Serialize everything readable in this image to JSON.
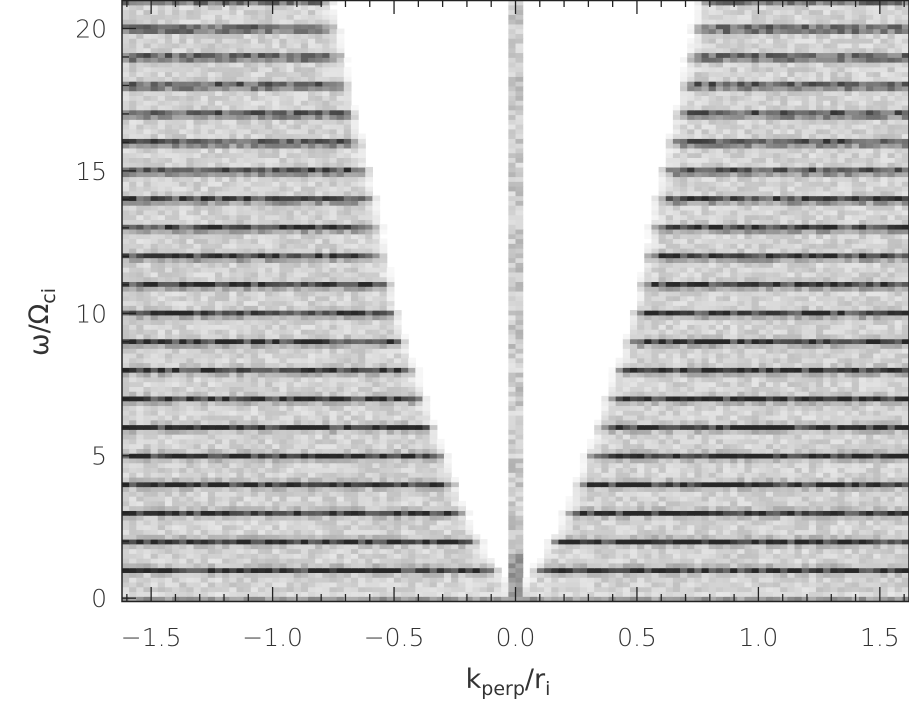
{
  "chart_data": {
    "type": "heatmap",
    "colormap": "grayscale-inverted",
    "title": "",
    "xlabel": {
      "main": "k",
      "sub": "perp",
      "mid": "/r",
      "sub2": "i"
    },
    "ylabel": {
      "main": "ω/Ω",
      "sub": "ci"
    },
    "xlim": [
      -1.62,
      1.62
    ],
    "ylim": [
      -0.1,
      21.0
    ],
    "x_ticks": [
      {
        "value": -1.5,
        "label": "−1.5"
      },
      {
        "value": -1.0,
        "label": "−1.0"
      },
      {
        "value": -0.5,
        "label": "−0.5"
      },
      {
        "value": 0.0,
        "label": "0.0"
      },
      {
        "value": 0.5,
        "label": "0.5"
      },
      {
        "value": 1.0,
        "label": "1.0"
      },
      {
        "value": 1.5,
        "label": "1.5"
      }
    ],
    "y_ticks": [
      {
        "value": 0,
        "label": "0"
      },
      {
        "value": 5,
        "label": "5"
      },
      {
        "value": 10,
        "label": "10"
      },
      {
        "value": 15,
        "label": "15"
      },
      {
        "value": 20,
        "label": "20"
      }
    ],
    "x_minor_step": 0.1,
    "y_minor_step": 1,
    "features": {
      "harmonic_bands_at_integer_omega": [
        1,
        2,
        3,
        4,
        5,
        6,
        7,
        8,
        9,
        10,
        11,
        12,
        13,
        14,
        15,
        16,
        17,
        18,
        19,
        20
      ],
      "empty_region_boundary": [
        {
          "abs_k": 0.05,
          "omega": 0.5
        },
        {
          "abs_k": 0.2,
          "omega": 2.5
        },
        {
          "abs_k": 0.35,
          "omega": 6.0
        },
        {
          "abs_k": 0.45,
          "omega": 8.5
        },
        {
          "abs_k": 0.5,
          "omega": 10.0
        },
        {
          "abs_k": 0.55,
          "omega": 12.0
        },
        {
          "abs_k": 0.62,
          "omega": 15.0
        },
        {
          "abs_k": 0.75,
          "omega": 20.0
        }
      ],
      "central_column_k": 0.0
    }
  }
}
